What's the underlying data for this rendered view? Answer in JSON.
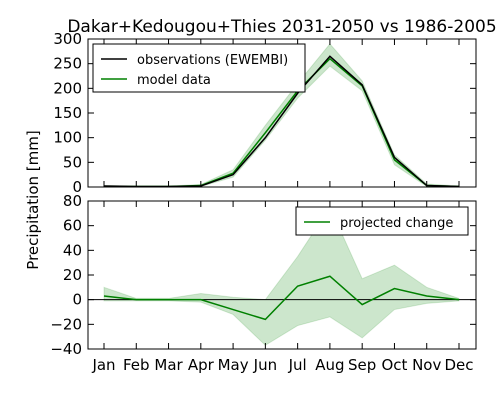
{
  "chart_data": [
    {
      "type": "line",
      "title": "Dakar+Kedougou+Thies 2031-2050 vs 1986-2005",
      "ylabel": "Precipitation [mm]",
      "categories": [
        "Jan",
        "Feb",
        "Mar",
        "Apr",
        "May",
        "Jun",
        "Jul",
        "Aug",
        "Sep",
        "Oct",
        "Nov",
        "Dec"
      ],
      "ylim": [
        0,
        300
      ],
      "yticks": [
        0,
        50,
        100,
        150,
        200,
        250,
        300
      ],
      "grid": false,
      "legend_position": "top-left",
      "series": [
        {
          "name": "observations (EWEMBI)",
          "color": "#000000",
          "values": [
            2,
            1,
            1,
            2,
            25,
            100,
            190,
            265,
            207,
            60,
            3,
            1
          ]
        },
        {
          "name": "model data",
          "color": "#008000",
          "values": [
            1,
            1,
            1,
            3,
            28,
            110,
            195,
            260,
            205,
            55,
            3,
            1
          ],
          "band_upper": [
            3,
            2,
            2,
            5,
            35,
            125,
            210,
            290,
            215,
            65,
            6,
            2
          ],
          "band_lower": [
            0,
            0,
            0,
            1,
            20,
            95,
            180,
            245,
            195,
            45,
            1,
            0
          ]
        }
      ]
    },
    {
      "type": "line",
      "categories": [
        "Jan",
        "Feb",
        "Mar",
        "Apr",
        "May",
        "Jun",
        "Jul",
        "Aug",
        "Sep",
        "Oct",
        "Nov",
        "Dec"
      ],
      "ylim": [
        -40,
        80
      ],
      "yticks": [
        -40,
        -20,
        0,
        20,
        40,
        60,
        80
      ],
      "grid": false,
      "legend_position": "top-right",
      "zero_line": true,
      "series": [
        {
          "name": "projected change",
          "color": "#008000",
          "values": [
            3,
            0,
            0,
            0,
            -8,
            -16,
            11,
            19,
            -4,
            9,
            3,
            0
          ],
          "band_upper": [
            10,
            1,
            1,
            5,
            2,
            0,
            35,
            75,
            17,
            28,
            10,
            1
          ],
          "band_lower": [
            -1,
            -1,
            -1,
            -2,
            -12,
            -37,
            -21,
            -14,
            -31,
            -8,
            -3,
            -1
          ]
        }
      ]
    }
  ]
}
